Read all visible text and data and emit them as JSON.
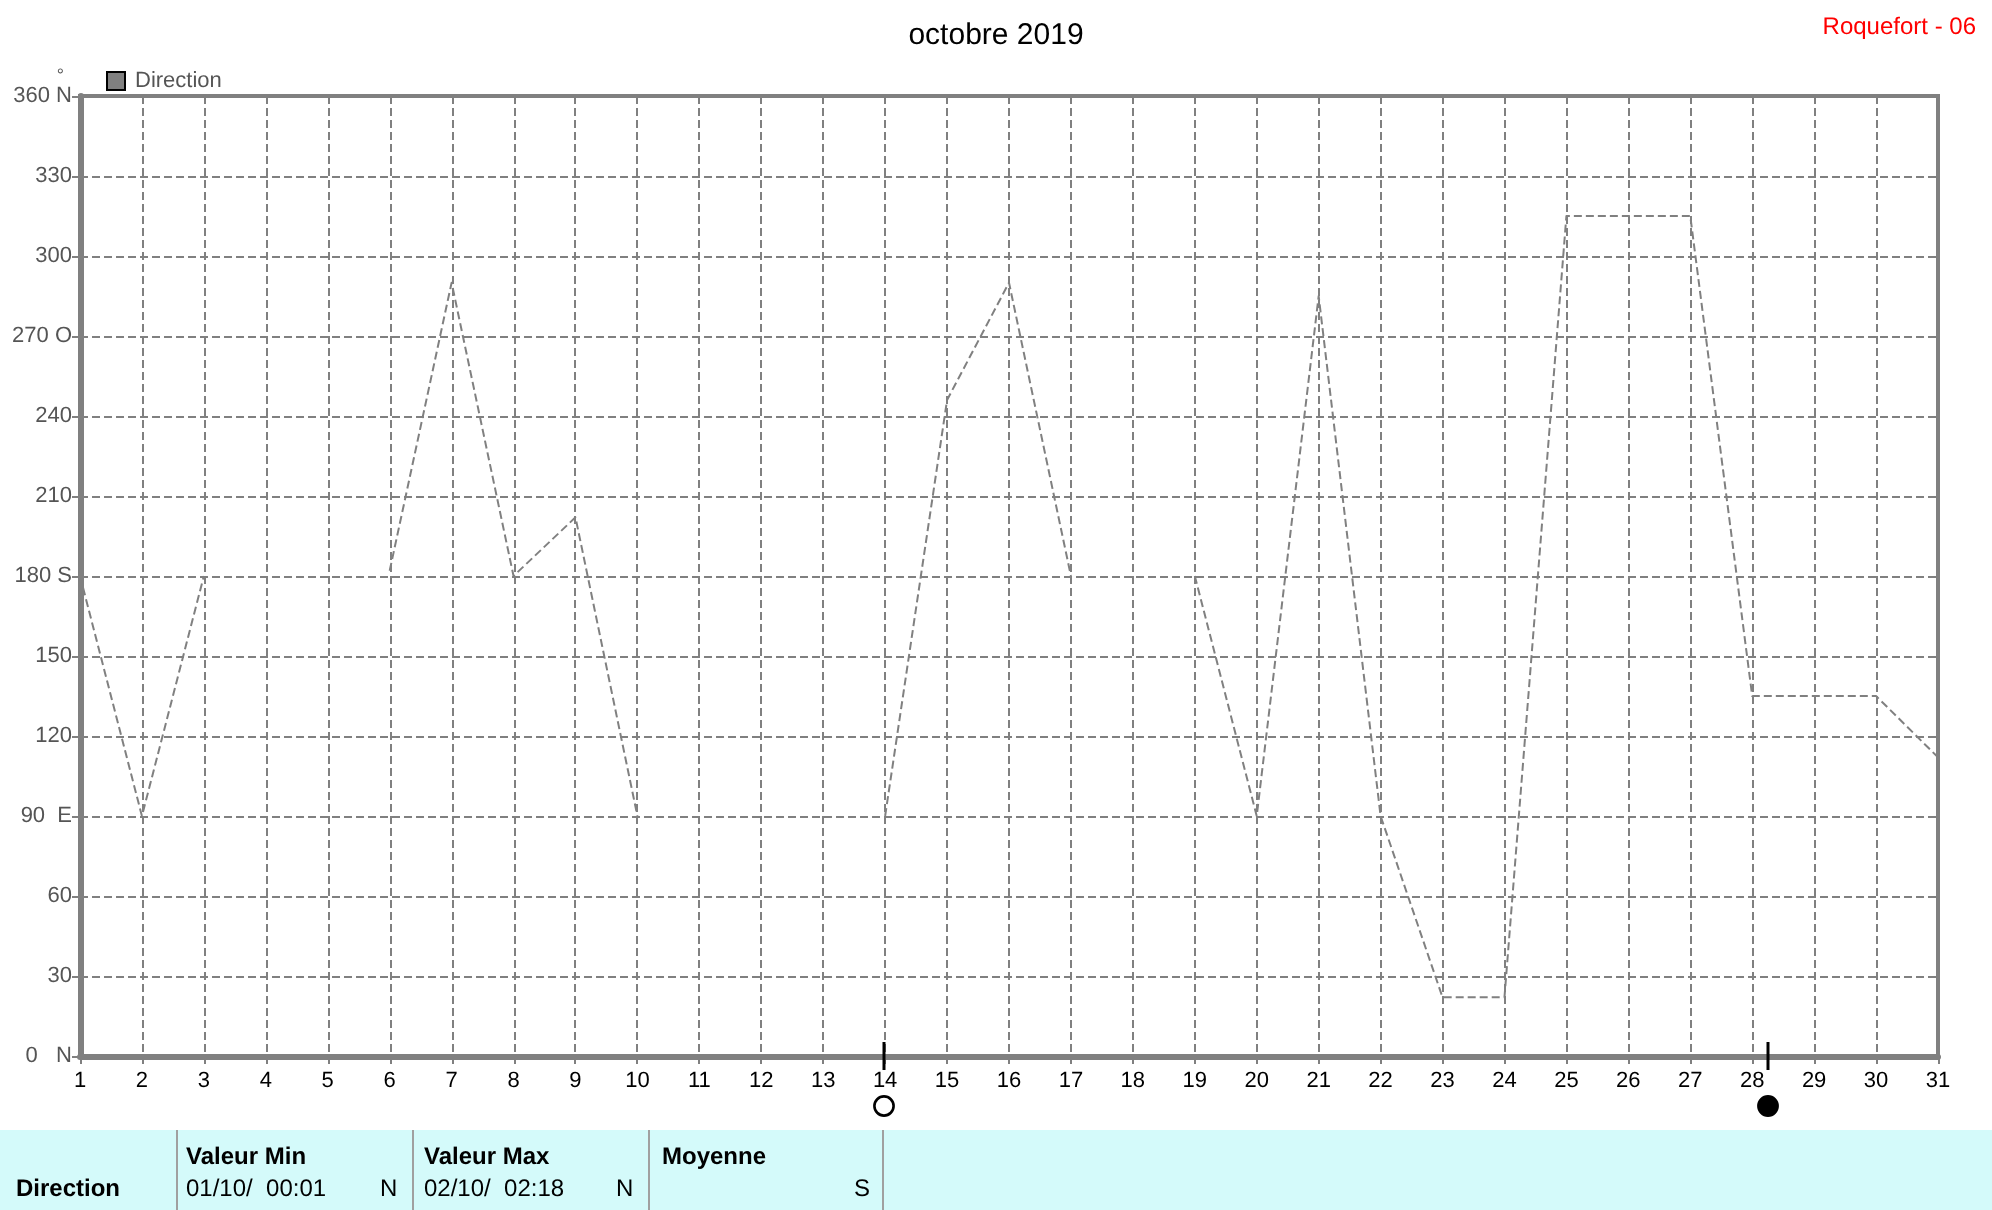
{
  "chart_data": {
    "type": "line",
    "title": "octobre 2019",
    "ylabel": "°",
    "annotations": [
      "Roquefort - 06",
      "Direction",
      "Valeur Min",
      "01/10/  00:01",
      "N",
      "Valeur Max",
      "02/10/  02:18",
      "N",
      "Moyenne",
      "S"
    ],
    "x": [
      1,
      2,
      3,
      4,
      5,
      6,
      7,
      8,
      9,
      10,
      11,
      12,
      13,
      14,
      15,
      16,
      17,
      18,
      19,
      20,
      21,
      22,
      23,
      24,
      25,
      26,
      27,
      28,
      29,
      30,
      31
    ],
    "series": [
      {
        "name": "Direction",
        "color": "#808080",
        "values": [
          180,
          90,
          180,
          null,
          null,
          182,
          290,
          180,
          202,
          90,
          null,
          null,
          null,
          90,
          246,
          290,
          180,
          null,
          180,
          90,
          285,
          90,
          22,
          22,
          315,
          315,
          315,
          135,
          135,
          135,
          112
        ]
      }
    ],
    "xlim": [
      1,
      31
    ],
    "xticks": [
      1,
      2,
      3,
      4,
      5,
      6,
      7,
      8,
      9,
      10,
      11,
      12,
      13,
      14,
      15,
      16,
      17,
      18,
      19,
      20,
      21,
      22,
      23,
      24,
      25,
      26,
      27,
      28,
      29,
      30,
      31
    ],
    "ylim": [
      0,
      360
    ],
    "yticks": [
      {
        "value": 0,
        "label": "0   N"
      },
      30,
      60,
      {
        "value": 90,
        "label": "90  E"
      },
      120,
      150,
      {
        "value": 180,
        "label": "180 S"
      },
      210,
      240,
      {
        "value": 270,
        "label": "270 O"
      },
      300,
      330,
      {
        "value": 360,
        "label": "360 N"
      }
    ],
    "grid": true,
    "legend": "top left",
    "marker": "none",
    "line_style": "dashed"
  }
}
